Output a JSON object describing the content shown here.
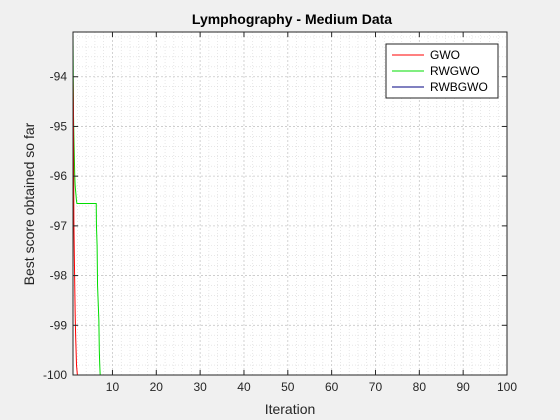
{
  "chart_data": {
    "type": "line",
    "title": "Lymphography - Medium Data",
    "xlabel": "Iteration",
    "ylabel": "Best score obtained so far",
    "xlim": [
      1,
      100
    ],
    "ylim": [
      -100,
      -93.1
    ],
    "xticks": [
      10,
      20,
      30,
      40,
      50,
      60,
      70,
      80,
      90,
      100
    ],
    "yticks": [
      -100,
      -99,
      -98,
      -97,
      -96,
      -95,
      -94
    ],
    "grid": true,
    "minor_grid": true,
    "legend": "top-right",
    "series": [
      {
        "name": "GWO",
        "color": "#ff0000",
        "x": [
          1,
          1.1,
          1.15,
          1.2,
          1.3,
          1.4,
          1.5,
          1.6,
          1.7,
          1.8,
          2,
          100
        ],
        "y": [
          -94.0,
          -94.6,
          -95.8,
          -96.9,
          -97.6,
          -98.2,
          -98.8,
          -99.2,
          -99.5,
          -99.8,
          -100,
          -100
        ]
      },
      {
        "name": "RWGWO",
        "color": "#00dd00",
        "x": [
          1,
          1.05,
          1.1,
          1.2,
          1.3,
          1.4,
          1.5,
          1.6,
          1.7,
          1.8,
          1.9,
          2,
          6.3,
          6.35,
          6.5,
          6.6,
          6.9,
          7.0,
          7.1,
          7.2,
          100
        ],
        "y": [
          -93.1,
          -93.8,
          -94.7,
          -95.2,
          -95.6,
          -96.0,
          -96.2,
          -96.3,
          -96.4,
          -96.5,
          -96.55,
          -96.55,
          -96.55,
          -97.0,
          -97.4,
          -98.2,
          -98.9,
          -99.5,
          -99.8,
          -100,
          -100
        ]
      },
      {
        "name": "RWBGWO",
        "color": "#000080",
        "x": [
          1,
          100
        ],
        "y": [
          -100,
          -100
        ]
      }
    ]
  }
}
